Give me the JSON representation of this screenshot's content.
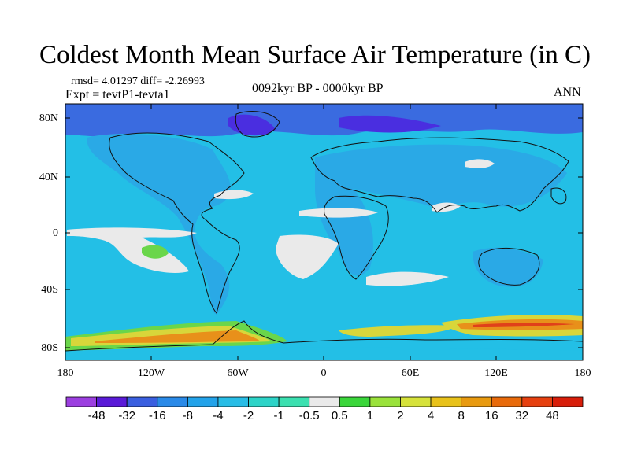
{
  "title": "Coldest Month Mean Surface Air Temperature (in C)",
  "stats_line": "rmsd= 4.01297 diff= -2.26993",
  "experiment": "Expt = tevtP1-tevta1",
  "period": "0092kyr BP - 0000kyr BP",
  "season": "ANN",
  "lat_labels": [
    "80N",
    "40N",
    "0",
    "40S",
    "80S"
  ],
  "lon_labels": [
    "180",
    "120W",
    "60W",
    "0",
    "60E",
    "120E",
    "180"
  ],
  "colorbar": {
    "labels": [
      "-48",
      "-32",
      "-16",
      "-8",
      "-4",
      "-2",
      "-1",
      "-0.5",
      "0.5",
      "1",
      "2",
      "4",
      "8",
      "16",
      "32",
      "48"
    ],
    "colors": [
      "#9c3fe0",
      "#5a1ad8",
      "#3a5fe0",
      "#2a8ae8",
      "#23a3ea",
      "#28bde6",
      "#2dd4c8",
      "#3be0b0",
      "#eaeaea",
      "#3ad63a",
      "#9ae23a",
      "#d6e23a",
      "#e8c21a",
      "#e89a0f",
      "#e86a0a",
      "#e64010",
      "#d81e0a"
    ]
  },
  "palette": {
    "ocean_base": "#23bfe6",
    "land_base": "#2aa9e6",
    "arctic": "#3a6be0",
    "deep": "#4a2ee0",
    "neutral": "#eaeaea",
    "warm_green": "#6ad64a",
    "warm_yellow": "#d8d63a",
    "warm_orange": "#e8901a",
    "warm_red": "#e0401a"
  }
}
